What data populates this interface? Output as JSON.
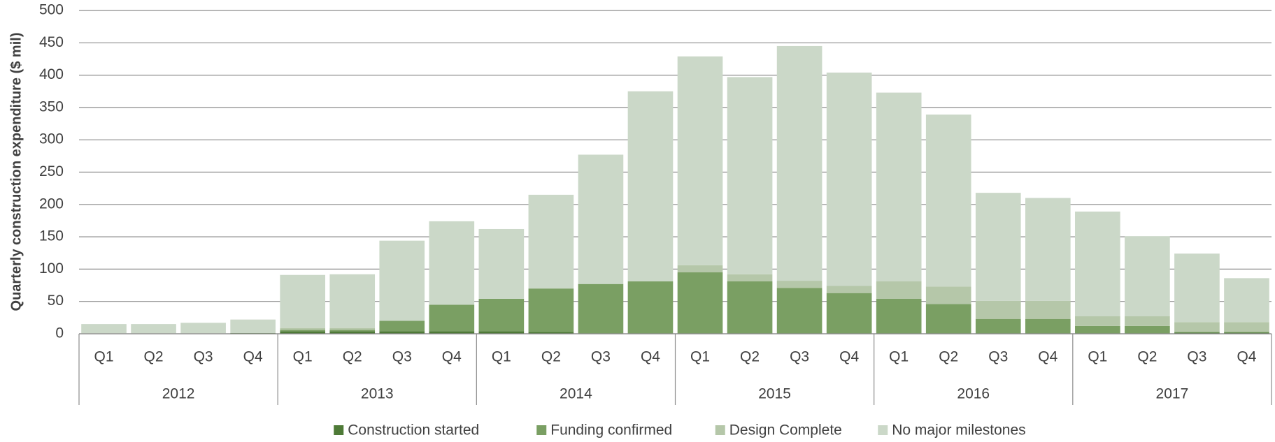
{
  "chart_data": {
    "type": "stacked_bar",
    "y_axis_label": "Quarterly construction expenditure ($ mil)",
    "categories": [
      "Q1",
      "Q2",
      "Q3",
      "Q4",
      "Q1",
      "Q2",
      "Q3",
      "Q4",
      "Q1",
      "Q2",
      "Q3",
      "Q4",
      "Q1",
      "Q2",
      "Q3",
      "Q4",
      "Q1",
      "Q2",
      "Q3",
      "Q4",
      "Q1",
      "Q2",
      "Q3",
      "Q4"
    ],
    "years": [
      "2012",
      "2013",
      "2014",
      "2015",
      "2016",
      "2017"
    ],
    "ylim": [
      0,
      500
    ],
    "yticks": [
      0,
      50,
      100,
      150,
      200,
      250,
      300,
      350,
      400,
      450,
      500
    ],
    "grid": true,
    "legend": "bottom",
    "series": [
      {
        "name": "Construction started",
        "color": "#4e7a37",
        "values": [
          0,
          0,
          0,
          1,
          4,
          4,
          4,
          4,
          4,
          3,
          0,
          0,
          0,
          0,
          0,
          0,
          0,
          0,
          0,
          0,
          0,
          0,
          2,
          2
        ]
      },
      {
        "name": "Funding confirmed",
        "color": "#7a9f63",
        "values": [
          0,
          0,
          0,
          0,
          2,
          2,
          16,
          41,
          50,
          67,
          77,
          81,
          95,
          81,
          71,
          63,
          54,
          46,
          23,
          23,
          12,
          12,
          1,
          1
        ]
      },
      {
        "name": "Design Complete",
        "color": "#b5c7a9",
        "values": [
          0,
          0,
          0,
          0,
          3,
          3,
          0,
          0,
          0,
          0,
          0,
          0,
          11,
          11,
          11,
          11,
          27,
          27,
          28,
          28,
          15,
          15,
          15,
          15
        ]
      },
      {
        "name": "No major milestones",
        "color": "#cbd8c8",
        "values": [
          15,
          15,
          17,
          21,
          82,
          83,
          124,
          129,
          108,
          145,
          200,
          294,
          323,
          305,
          363,
          330,
          292,
          266,
          167,
          159,
          162,
          124,
          106,
          68
        ]
      }
    ]
  }
}
